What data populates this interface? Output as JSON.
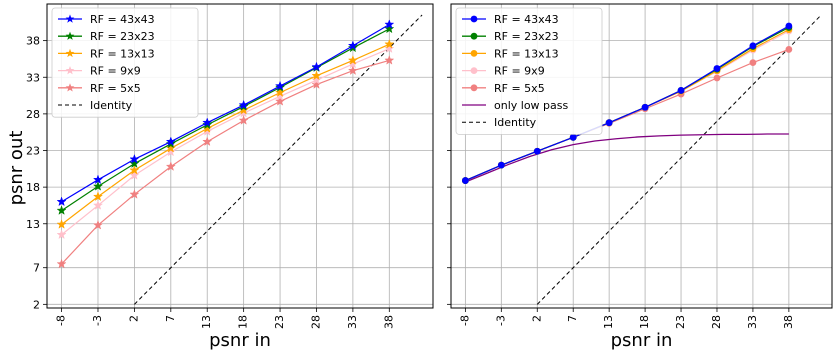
{
  "figure": {
    "shared_ylabel": "psnr out",
    "colors": {
      "rf43": "#0000ff",
      "rf23": "#008000",
      "rf13": "#ffa500",
      "rf9": "#ffc0cb",
      "rf5": "#f08080",
      "lowpass": "#800080",
      "identity": "#000000"
    }
  },
  "chart_data": [
    {
      "type": "line",
      "title": "",
      "xlabel": "psnr in",
      "ylabel": "psnr out",
      "xlim": [
        -10,
        43
      ],
      "ylim": [
        1.5,
        43
      ],
      "x_ticks": [
        "-8",
        "-3",
        "2",
        "7",
        "13",
        "18",
        "23",
        "28",
        "33",
        "38"
      ],
      "y_ticks": [
        "2",
        "7",
        "13",
        "18",
        "23",
        "28",
        "33",
        "38"
      ],
      "grid": true,
      "legend_position": "top-left",
      "marker": "star",
      "x": [
        -8,
        -3,
        2,
        7,
        12,
        17,
        22,
        27,
        32,
        37
      ],
      "series": [
        {
          "name": "RF = 43x43",
          "color": "#0000ff",
          "values": [
            16.0,
            19.0,
            21.8,
            24.2,
            26.8,
            29.2,
            31.8,
            34.4,
            37.3,
            40.2
          ]
        },
        {
          "name": "RF = 23x23",
          "color": "#008000",
          "values": [
            14.8,
            18.1,
            21.2,
            23.9,
            26.5,
            29.0,
            31.6,
            34.3,
            37.0,
            39.6
          ]
        },
        {
          "name": "RF = 13x13",
          "color": "#ffa500",
          "values": [
            12.9,
            16.7,
            20.3,
            23.3,
            26.0,
            28.5,
            30.9,
            33.2,
            35.3,
            37.5
          ]
        },
        {
          "name": "RF = 9x9",
          "color": "#ffc0cb",
          "values": [
            11.5,
            15.5,
            19.6,
            22.8,
            25.6,
            28.1,
            30.4,
            32.6,
            34.8,
            36.9
          ]
        },
        {
          "name": "RF = 5x5",
          "color": "#f08080",
          "values": [
            7.5,
            12.8,
            17.0,
            20.8,
            24.2,
            27.1,
            29.7,
            32.0,
            33.9,
            35.3
          ]
        }
      ],
      "identity": {
        "name": "Identity",
        "x": [
          2,
          41.5
        ],
        "y": [
          2,
          41.5
        ]
      }
    },
    {
      "type": "line",
      "title": "",
      "xlabel": "psnr in",
      "ylabel": "",
      "xlim": [
        -10,
        43
      ],
      "ylim": [
        1.5,
        43
      ],
      "x_ticks": [
        "-8",
        "-3",
        "2",
        "7",
        "13",
        "18",
        "23",
        "28",
        "33",
        "38"
      ],
      "y_ticks": [
        "2",
        "7",
        "13",
        "18",
        "23",
        "28",
        "33",
        "38"
      ],
      "grid": true,
      "legend_position": "top-left",
      "marker": "circle",
      "x": [
        -8,
        -3,
        2,
        7,
        12,
        17,
        22,
        27,
        32,
        37
      ],
      "series": [
        {
          "name": "RF = 43x43",
          "color": "#0000ff",
          "values": [
            18.9,
            21.0,
            22.9,
            24.8,
            26.8,
            28.9,
            31.2,
            34.2,
            37.3,
            40.0
          ]
        },
        {
          "name": "RF = 23x23",
          "color": "#008000",
          "values": [
            18.9,
            21.0,
            22.9,
            24.8,
            26.8,
            28.9,
            31.2,
            34.1,
            37.2,
            39.8
          ]
        },
        {
          "name": "RF = 13x13",
          "color": "#ffa500",
          "values": [
            18.9,
            21.0,
            22.9,
            24.8,
            26.8,
            28.9,
            31.1,
            33.9,
            36.9,
            39.5
          ]
        },
        {
          "name": "RF = 9x9",
          "color": "#ffc0cb",
          "values": [
            18.9,
            21.0,
            22.9,
            24.8,
            26.8,
            28.9,
            31.1,
            33.8,
            36.7,
            39.3
          ]
        },
        {
          "name": "RF = 5x5",
          "color": "#f08080",
          "values": [
            18.9,
            21.0,
            22.9,
            24.8,
            26.7,
            28.7,
            30.7,
            32.9,
            35.0,
            36.8
          ]
        }
      ],
      "lowpass": {
        "name": "only low pass",
        "x": [
          -8,
          -5,
          -2,
          1,
          4,
          7,
          10,
          13,
          16,
          19,
          22,
          25,
          28,
          31,
          34,
          37
        ],
        "y": [
          18.7,
          19.9,
          21.1,
          22.2,
          23.1,
          23.8,
          24.3,
          24.6,
          24.85,
          25.0,
          25.1,
          25.15,
          25.2,
          25.2,
          25.25,
          25.25
        ]
      },
      "identity": {
        "name": "Identity",
        "x": [
          2,
          41.5
        ],
        "y": [
          2,
          41.5
        ]
      }
    }
  ]
}
